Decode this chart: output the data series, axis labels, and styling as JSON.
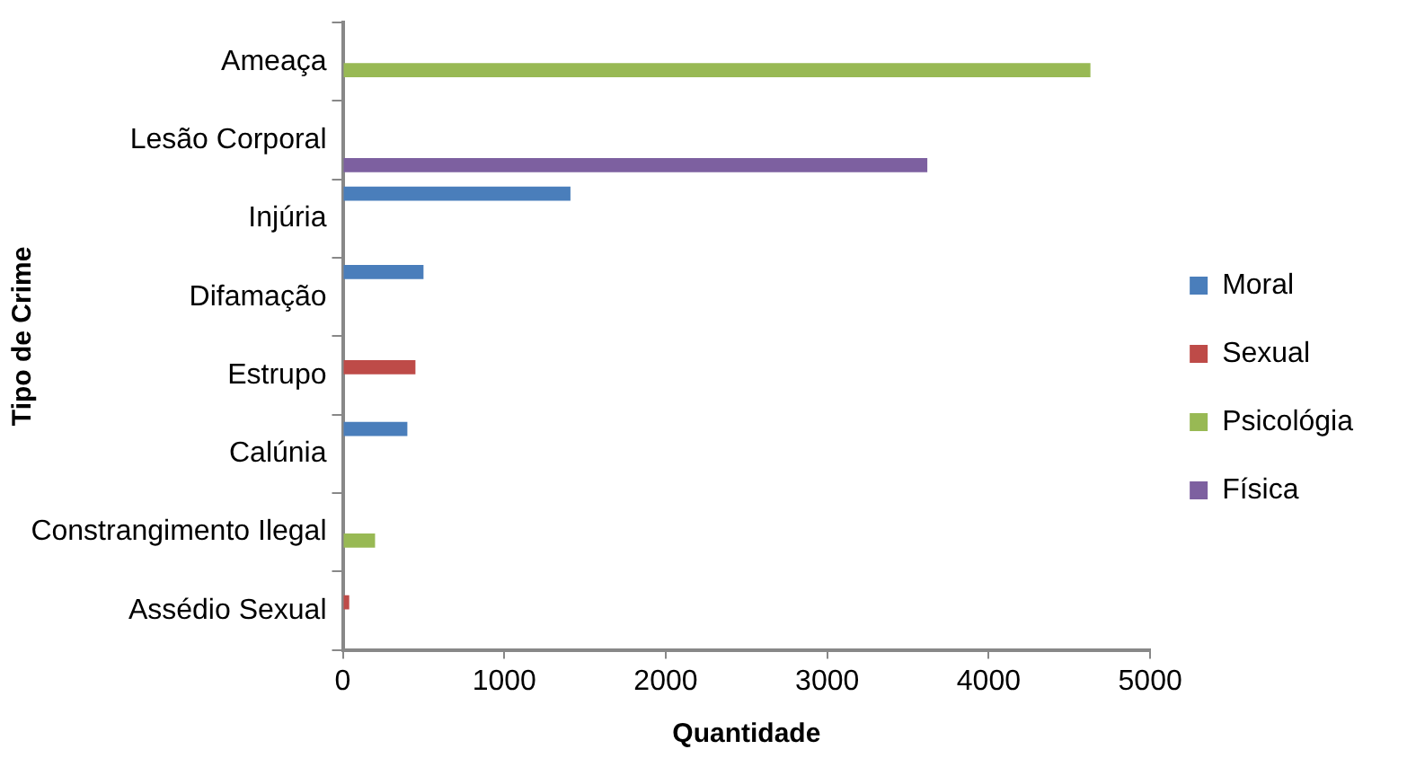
{
  "chart_data": {
    "type": "bar",
    "orientation": "horizontal",
    "xlabel": "Quantidade",
    "ylabel": "Tipo de Crime",
    "categories": [
      "Ameaça",
      "Lesão Corporal",
      "Injúria",
      "Difamação",
      "Estrupo",
      "Calúnia",
      "Constrangimento Ilegal",
      "Assédio Sexual"
    ],
    "series": [
      {
        "name": "Moral",
        "color": "#4a7ebb",
        "values": [
          null,
          null,
          1410,
          500,
          null,
          400,
          null,
          null
        ]
      },
      {
        "name": "Sexual",
        "color": "#be4b48",
        "values": [
          null,
          null,
          null,
          null,
          450,
          null,
          null,
          40
        ]
      },
      {
        "name": "Psicológia",
        "color": "#98b954",
        "values": [
          4630,
          null,
          null,
          null,
          null,
          null,
          200,
          null
        ]
      },
      {
        "name": "Física",
        "color": "#7d60a0",
        "values": [
          null,
          3620,
          null,
          null,
          null,
          null,
          null,
          null
        ]
      }
    ],
    "xlim": [
      0,
      5000
    ],
    "xticks": [
      0,
      1000,
      2000,
      3000,
      4000,
      5000
    ],
    "grid": false,
    "legend": "right"
  }
}
